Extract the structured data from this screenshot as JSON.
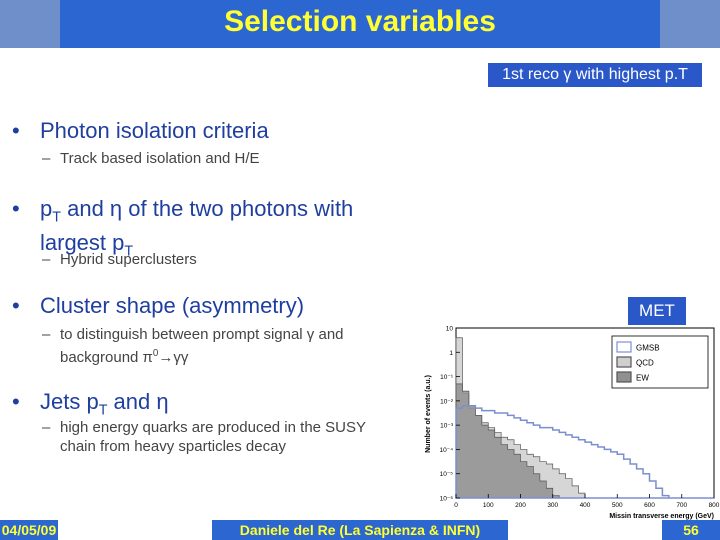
{
  "slide": {
    "title": "Selection variables",
    "top_badge": "1st reco γ with highest p.T",
    "met_badge": "MET",
    "bullets": [
      {
        "text_a": "Photon ",
        "text_b": "isolation criteria",
        "sub": "Track based isolation and H/E"
      },
      {
        "line1_a": "p",
        "line1_sub": "T",
        "line1_b": " and η of the two photons with",
        "line2_a": "largest p",
        "line2_sub": "T",
        "sub": "Hybrid superclusters"
      },
      {
        "text_a": "Cluster shape ",
        "text_b": "(asymmetry)",
        "sub_line1": "to distinguish between prompt signal γ and",
        "sub_line2_a": "background π",
        "sub_line2_sup": "0",
        "sub_line2_b": "→γγ"
      },
      {
        "text_a": "Jets p",
        "text_sub": "T",
        "text_b": " and η",
        "sub_line1": "high energy quarks are produced in the SUSY",
        "sub_line2": "chain from heavy sparticles decay"
      }
    ]
  },
  "footer": {
    "date": "04/05/09",
    "author": "Daniele del Re (La Sapienza & INFN)",
    "page": "56"
  },
  "chart_data": {
    "type": "histogram",
    "xlabel": "Missin transverse energy (GeV)",
    "ylabel": "Number of events (a.u.)",
    "xlim": [
      0,
      800
    ],
    "ylim_log10": [
      -6,
      1
    ],
    "x_ticks": [
      "0",
      "100",
      "200",
      "300",
      "400",
      "500",
      "600",
      "700",
      "800"
    ],
    "y_ticks": [
      "10",
      "1",
      "10⁻¹",
      "10⁻²",
      "10⁻³",
      "10⁻⁴",
      "10⁻⁵",
      "10⁻⁶"
    ],
    "legend": [
      "GMSB",
      "QCD",
      "EW"
    ],
    "legend_position": "top-right",
    "bin_width": 20,
    "series": [
      {
        "name": "GMSB",
        "color": "#7b8fd0",
        "log10_values": [
          -2.3,
          -2.2,
          -2.2,
          -2.3,
          -2.4,
          -2.4,
          -2.5,
          -2.5,
          -2.6,
          -2.7,
          -2.8,
          -2.9,
          -3.0,
          -3.1,
          -3.1,
          -3.2,
          -3.3,
          -3.4,
          -3.5,
          -3.6,
          -3.7,
          -3.8,
          -3.9,
          -4.0,
          -4.1,
          -4.2,
          -4.4,
          -4.6,
          -4.8,
          -5.0,
          -5.3,
          -5.6,
          -5.9,
          -6,
          -6,
          -6,
          -6,
          -6,
          -6,
          -6
        ]
      },
      {
        "name": "QCD",
        "color": "#cfcfcf",
        "log10_values": [
          0.6,
          -1.7,
          -2.3,
          -2.6,
          -2.9,
          -3.1,
          -3.3,
          -3.5,
          -3.6,
          -3.8,
          -4.0,
          -4.2,
          -4.3,
          -4.5,
          -4.6,
          -4.8,
          -5.0,
          -5.2,
          -5.5,
          -5.8,
          -6,
          -6,
          -6,
          -6,
          -6,
          -6,
          -6,
          -6,
          -6,
          -6,
          -6,
          -6,
          -6,
          -6,
          -6,
          -6,
          -6,
          -6,
          -6,
          -6
        ]
      },
      {
        "name": "EW",
        "color": "#909090",
        "log10_values": [
          -1.3,
          -1.6,
          -2.2,
          -2.6,
          -3.0,
          -3.2,
          -3.5,
          -3.8,
          -4.0,
          -4.2,
          -4.5,
          -4.7,
          -5.0,
          -5.3,
          -5.6,
          -5.9,
          -6,
          -6,
          -6,
          -6,
          -6,
          -6,
          -6,
          -6,
          -6,
          -6,
          -6,
          -6,
          -6,
          -6,
          -6,
          -6,
          -6,
          -6,
          -6,
          -6,
          -6,
          -6,
          -6,
          -6
        ]
      }
    ]
  }
}
